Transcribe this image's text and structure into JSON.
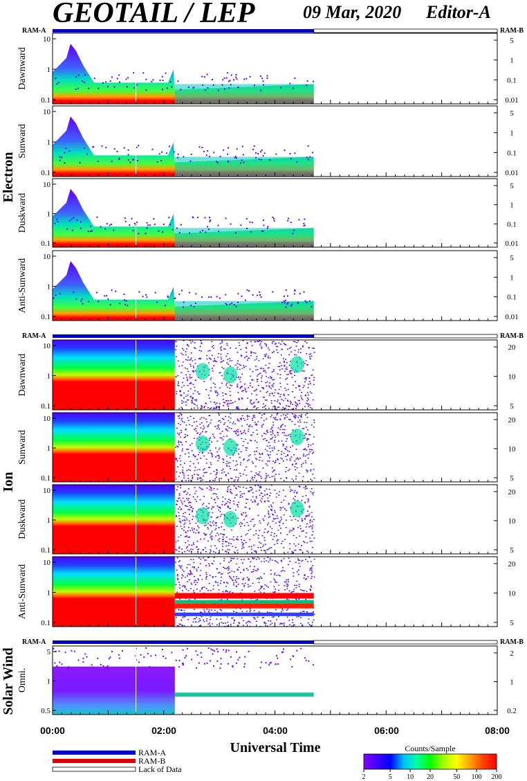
{
  "header": {
    "title": "GEOTAIL / LEP",
    "date": "09 Mar, 2020",
    "editor": "Editor-A"
  },
  "groups": {
    "electron": "Electron",
    "ion": "Ion",
    "solar_wind": "Solar Wind"
  },
  "ram_labels": {
    "a": "RAM-A",
    "b": "RAM-B"
  },
  "x_axis": {
    "label": "Universal Time",
    "ticks": [
      "00:00",
      "02:00",
      "04:00",
      "06:00",
      "08:00"
    ]
  },
  "legend": {
    "ram_a": "RAM-A",
    "ram_b": "RAM-B",
    "lack": "Lack of Data"
  },
  "colorbar": {
    "title": "Counts/Sample",
    "ticks": [
      "2",
      "5",
      "10",
      "20",
      "50",
      "100",
      "200"
    ],
    "colors": [
      "#8000ff",
      "#4000ff",
      "#0000ff",
      "#00c0ff",
      "#00ffa0",
      "#00ff00",
      "#a0ff00",
      "#ffff00",
      "#ffa000",
      "#ff4000",
      "#ff0000"
    ]
  },
  "chart_data": {
    "type": "heatmap",
    "x_range_hours": [
      0,
      8
    ],
    "data_end_hours": 4.7,
    "ram_a_bar_hours": [
      0,
      4.7
    ],
    "panels": [
      {
        "group": "electron",
        "label": "Dawnward",
        "left_ticks": [
          "10",
          "1",
          "0.1"
        ],
        "right_ticks": [
          "5",
          "1",
          "0.1",
          "0.01"
        ]
      },
      {
        "group": "electron",
        "label": "Sunward",
        "left_ticks": [
          "10",
          "1",
          "0.1"
        ],
        "right_ticks": [
          "5",
          "1",
          "0.1",
          "0.01"
        ]
      },
      {
        "group": "electron",
        "label": "Duskward",
        "left_ticks": [
          "10",
          "1",
          "0.1"
        ],
        "right_ticks": [
          "5",
          "1",
          "0.1",
          "0.01"
        ]
      },
      {
        "group": "electron",
        "label": "Anti-Sunward",
        "left_ticks": [
          "10",
          "1",
          "0.1"
        ],
        "right_ticks": [
          "5",
          "1",
          "0.1",
          "0.01"
        ]
      },
      {
        "group": "ion",
        "label": "Dawnward",
        "left_ticks": [
          "10",
          "1",
          "0.1"
        ],
        "right_ticks": [
          "20",
          "10",
          "5"
        ]
      },
      {
        "group": "ion",
        "label": "Sunward",
        "left_ticks": [
          "10",
          "1",
          "0.1"
        ],
        "right_ticks": [
          "20",
          "10",
          "5"
        ]
      },
      {
        "group": "ion",
        "label": "Duskward",
        "left_ticks": [
          "10",
          "1",
          "0.1"
        ],
        "right_ticks": [
          "20",
          "10",
          "5"
        ]
      },
      {
        "group": "ion",
        "label": "Anti-Sunward",
        "left_ticks": [
          "10",
          "1",
          "0.1"
        ],
        "right_ticks": [
          "20",
          "10",
          "5"
        ]
      },
      {
        "group": "solar_wind",
        "label": "Omni.",
        "left_ticks": [
          "5",
          "1",
          "0.5"
        ],
        "right_ticks": [
          "2",
          "1",
          "0.2"
        ]
      }
    ]
  }
}
